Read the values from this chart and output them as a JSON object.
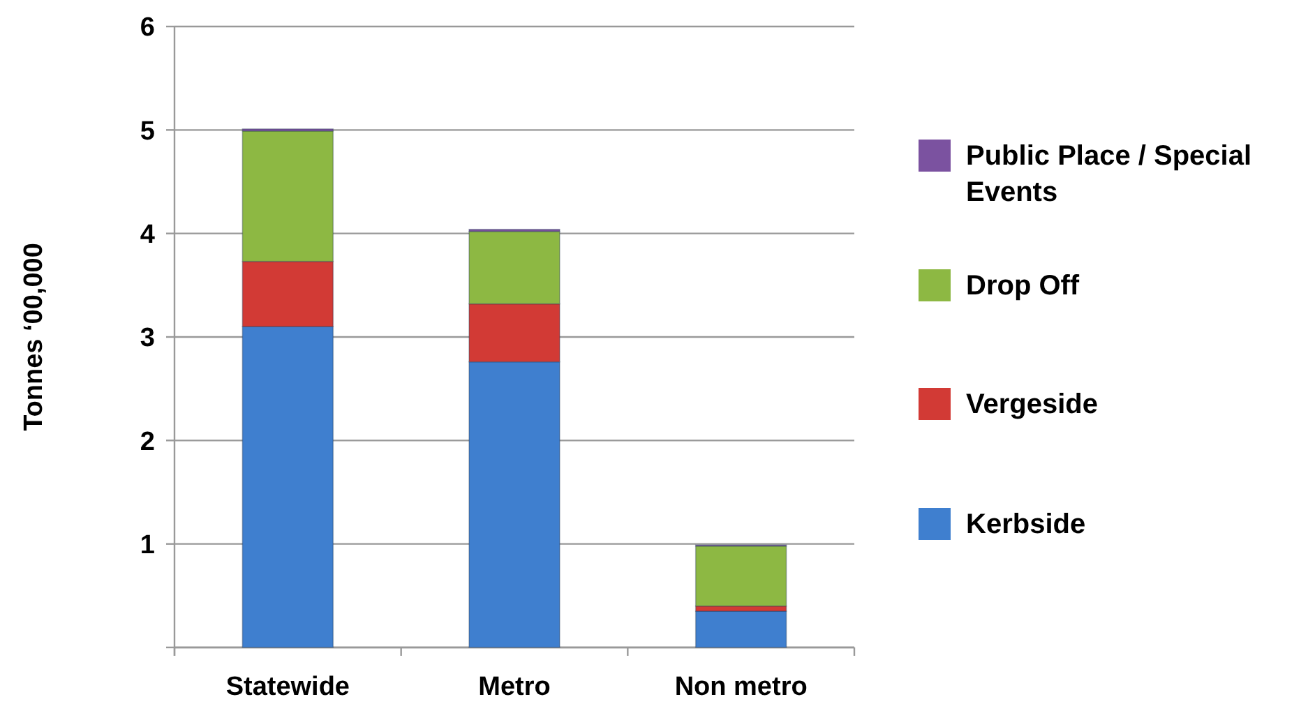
{
  "chart_data": {
    "type": "bar",
    "stacked": true,
    "ylabel": "Tonnes ‘00,000",
    "categories": [
      "Statewide",
      "Metro",
      "Non metro"
    ],
    "series": [
      {
        "name": "Kerbside",
        "color": "#3f7fcf",
        "values": [
          3.1,
          2.76,
          0.35
        ]
      },
      {
        "name": "Vergeside",
        "color": "#d23a35",
        "values": [
          0.63,
          0.56,
          0.05
        ]
      },
      {
        "name": "Drop Off",
        "color": "#8db843",
        "values": [
          1.26,
          0.7,
          0.58
        ]
      },
      {
        "name": "Public Place / Special Events",
        "color": "#7b52a0",
        "values": [
          0.02,
          0.02,
          0.01
        ]
      }
    ],
    "ylim": [
      0,
      6
    ],
    "yticks": [
      {
        "value": 0,
        "label": null
      },
      1,
      2,
      3,
      4,
      5,
      6
    ],
    "grid": "y",
    "legend": "right"
  }
}
